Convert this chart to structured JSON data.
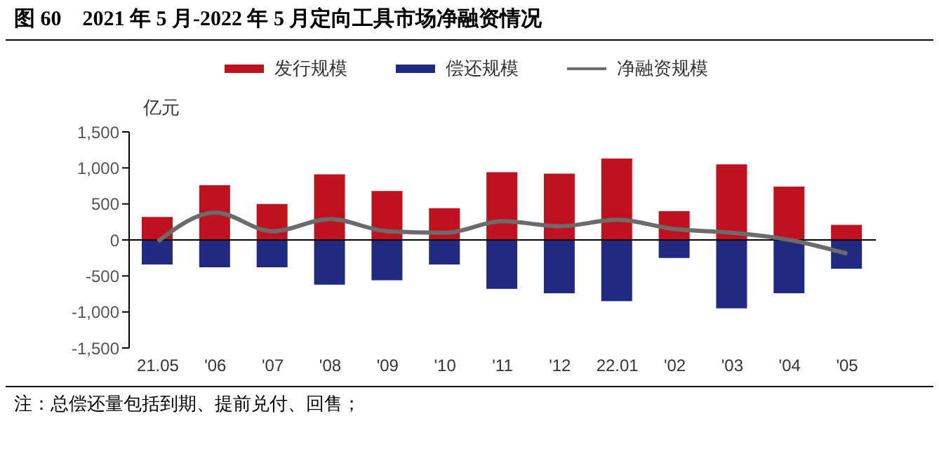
{
  "chart_data": {
    "type": "bar",
    "title": "图 60　2021 年 5 月-2022 年 5 月定向工具市场净融资情况",
    "ylabel": "亿元",
    "categories": [
      "21.05",
      "'06",
      "'07",
      "'08",
      "'09",
      "'10",
      "'11",
      "'12",
      "22.01",
      "'02",
      "'03",
      "'04",
      "'05"
    ],
    "series": [
      {
        "name": "发行规模",
        "color": "#c0111f",
        "values": [
          320,
          760,
          500,
          910,
          680,
          440,
          940,
          920,
          1130,
          400,
          1050,
          740,
          210
        ]
      },
      {
        "name": "偿还规模",
        "color": "#1f2a80",
        "values": [
          -340,
          -380,
          -380,
          -620,
          -560,
          -340,
          -680,
          -740,
          -850,
          -250,
          -950,
          -740,
          -400
        ]
      },
      {
        "name": "净融资规模",
        "type": "line",
        "color": "#6b6b6b",
        "values": [
          -20,
          380,
          120,
          290,
          120,
          100,
          260,
          190,
          280,
          150,
          100,
          0,
          -190
        ]
      }
    ],
    "stacked": true,
    "ylim": [
      -1500,
      1500
    ],
    "yticks": [
      {
        "value": -1500,
        "label": "-1,500"
      },
      {
        "value": -1000,
        "label": "-1,000"
      },
      -500,
      0,
      500,
      {
        "value": 1000,
        "label": "1,000"
      },
      {
        "value": 1500,
        "label": "1,500"
      }
    ],
    "ref_lines": [
      {
        "axis": "y",
        "value": 0,
        "color": "#000000"
      }
    ],
    "legend": "top",
    "marker": "none",
    "line_style": "solid",
    "annotations": [
      "注：总偿还量包括到期、提前兑付、回售；"
    ]
  }
}
